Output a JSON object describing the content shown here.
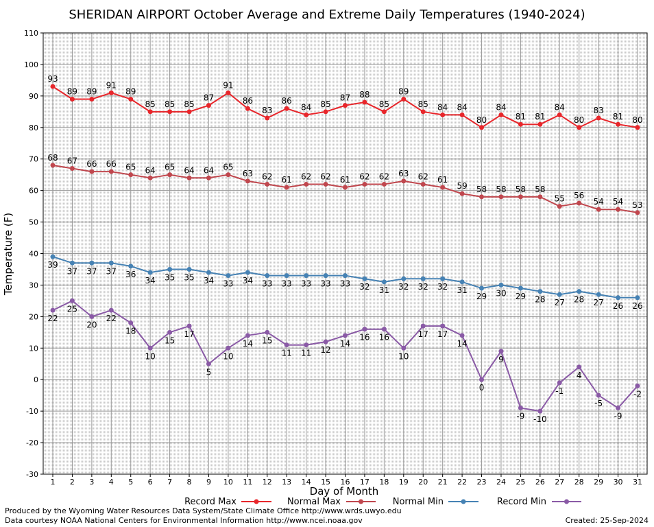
{
  "chart_data": {
    "type": "line",
    "title": "SHERIDAN AIRPORT October Average and Extreme Daily Temperatures (1940-2024)",
    "xlabel": "Day of Month",
    "ylabel": "Temperature (F)",
    "ylim": [
      -30,
      110
    ],
    "yticks": [
      -30,
      -20,
      -10,
      0,
      10,
      20,
      30,
      40,
      50,
      60,
      70,
      80,
      90,
      100,
      110
    ],
    "x": [
      1,
      2,
      3,
      4,
      5,
      6,
      7,
      8,
      9,
      10,
      11,
      12,
      13,
      14,
      15,
      16,
      17,
      18,
      19,
      20,
      21,
      22,
      23,
      24,
      25,
      26,
      27,
      28,
      29,
      30,
      31
    ],
    "grid": true,
    "legend_position": "bottom",
    "series": [
      {
        "name": "Record Max",
        "color": "#e8262b",
        "label_pos": "above",
        "values": [
          93,
          89,
          89,
          91,
          89,
          85,
          85,
          85,
          87,
          91,
          86,
          83,
          86,
          84,
          85,
          87,
          88,
          85,
          89,
          85,
          84,
          84,
          80,
          84,
          81,
          81,
          84,
          80,
          83,
          81,
          80
        ]
      },
      {
        "name": "Normal Max",
        "color": "#c0474e",
        "label_pos": "above",
        "values": [
          68,
          67,
          66,
          66,
          65,
          64,
          65,
          64,
          64,
          65,
          63,
          62,
          61,
          62,
          62,
          61,
          62,
          62,
          63,
          62,
          61,
          59,
          58,
          58,
          58,
          58,
          55,
          56,
          54,
          54,
          53
        ]
      },
      {
        "name": "Normal Min",
        "color": "#4682b4",
        "label_pos": "below",
        "values": [
          39,
          37,
          37,
          37,
          36,
          34,
          35,
          35,
          34,
          33,
          34,
          33,
          33,
          33,
          33,
          33,
          32,
          31,
          32,
          32,
          32,
          31,
          29,
          30,
          29,
          28,
          27,
          28,
          27,
          26,
          26
        ]
      },
      {
        "name": "Record Min",
        "color": "#8a5aa6",
        "label_pos": "below",
        "values": [
          22,
          25,
          20,
          22,
          18,
          10,
          15,
          17,
          5,
          10,
          14,
          15,
          11,
          11,
          12,
          14,
          16,
          16,
          10,
          17,
          17,
          14,
          0,
          9,
          -9,
          -10,
          -1,
          4,
          -5,
          -9,
          -2
        ]
      }
    ]
  },
  "footer": {
    "produced_by": "Produced by the Wyoming Water Resources Data System/State Climate Office http://www.wrds.uwyo.edu",
    "data_courtesy": "Data courtesy NOAA National Centers for Environmental Information http://www.ncei.noaa.gov",
    "created": "Created:  25-Sep-2024"
  }
}
